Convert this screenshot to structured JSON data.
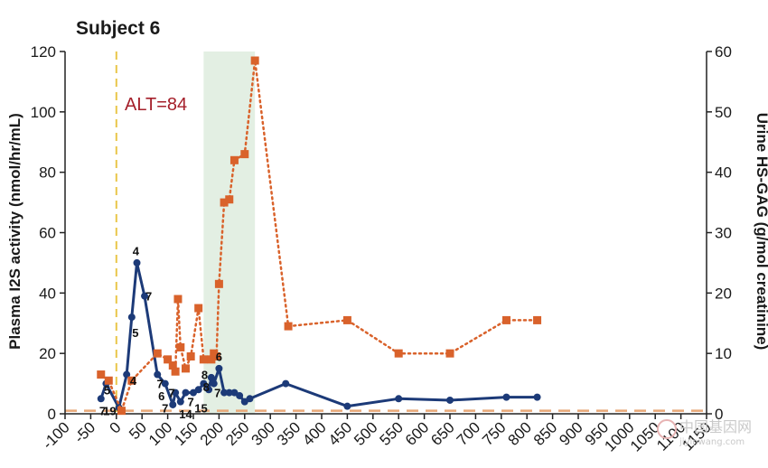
{
  "chart_data": {
    "type": "line",
    "title": "Subject 6",
    "ylabel": "Plasma I2S activity (nmol/hr/mL)",
    "y2label": "Urine HS-GAG (g/mol creatinine)",
    "xlabel": "",
    "xlim": [
      -100,
      1150
    ],
    "ylim": [
      0,
      120
    ],
    "y2lim": [
      0,
      60
    ],
    "x_ticks": [
      "-100",
      "-50",
      "0",
      "50",
      "100",
      "150",
      "200",
      "250",
      "300",
      "350",
      "400",
      "450",
      "500",
      "550",
      "600",
      "650",
      "700",
      "750",
      "800",
      "850",
      "900",
      "950",
      "1000",
      "1050",
      "1100",
      "1150"
    ],
    "y_ticks": [
      "0",
      "20",
      "40",
      "60",
      "80",
      "100",
      "120"
    ],
    "y2_ticks": [
      "0",
      "10",
      "20",
      "30",
      "40",
      "50",
      "60"
    ],
    "grid": false,
    "annotations": {
      "alt_label": "ALT=84",
      "alt_line_x": 0,
      "shaded_region": [
        170,
        270
      ],
      "baseline_y": 1
    },
    "series": [
      {
        "axis": "left",
        "color": "#1c3a78",
        "x": [
          -30,
          -20,
          5,
          20,
          30,
          40,
          55,
          80,
          95,
          110,
          115,
          125,
          135,
          150,
          160,
          170,
          180,
          185,
          190,
          200,
          210,
          220,
          230,
          240,
          250,
          260,
          330,
          450,
          550,
          650,
          760,
          820
        ],
        "values": [
          5,
          10,
          2,
          13,
          32,
          50,
          39,
          13,
          10,
          3,
          7,
          4,
          7,
          7,
          8,
          10,
          8,
          12,
          10,
          15,
          7,
          7,
          7,
          6,
          4,
          5,
          10,
          2.5,
          5,
          4.5,
          5.5,
          5.5
        ]
      },
      {
        "axis": "right",
        "color": "#d9622b",
        "x": [
          -30,
          -15,
          10,
          30,
          80,
          100,
          110,
          115,
          120,
          125,
          135,
          145,
          160,
          170,
          185,
          190,
          195,
          200,
          210,
          220,
          230,
          250,
          270,
          335,
          450,
          550,
          650,
          760,
          820
        ],
        "values": [
          6.5,
          5.5,
          0.5,
          5.5,
          10,
          9,
          8,
          7,
          19,
          11,
          7.5,
          9.5,
          17.5,
          9,
          9,
          10,
          9.5,
          21.5,
          35,
          35.5,
          42,
          43,
          58.5,
          14.5,
          15.5,
          10,
          10,
          15.5,
          15.5
        ]
      }
    ],
    "point_labels": [
      {
        "text": "7",
        "x": -27,
        "y": 1
      },
      {
        "text": "19",
        "x": -13,
        "y": 1
      },
      {
        "text": "5",
        "x": -18,
        "y": 8
      },
      {
        "text": "4",
        "x": 38,
        "y": 54
      },
      {
        "text": "7",
        "x": 63,
        "y": 39
      },
      {
        "text": "5",
        "x": 37,
        "y": 27
      },
      {
        "text": "4",
        "x": 33,
        "y": 11
      },
      {
        "text": "7",
        "x": 85,
        "y": 10
      },
      {
        "text": "6",
        "x": 88,
        "y": 6
      },
      {
        "text": "7",
        "x": 108,
        "y": 7
      },
      {
        "text": "7",
        "x": 95,
        "y": 2
      },
      {
        "text": "14",
        "x": 135,
        "y": 0
      },
      {
        "text": "7",
        "x": 145,
        "y": 4
      },
      {
        "text": "15",
        "x": 165,
        "y": 2
      },
      {
        "text": "8",
        "x": 172,
        "y": 13
      },
      {
        "text": "8",
        "x": 175,
        "y": 9
      },
      {
        "text": "6",
        "x": 200,
        "y": 19
      },
      {
        "text": "7",
        "x": 197,
        "y": 7
      }
    ]
  },
  "watermark": {
    "text": "中国基因网",
    "url": "jiyinwang.com"
  }
}
